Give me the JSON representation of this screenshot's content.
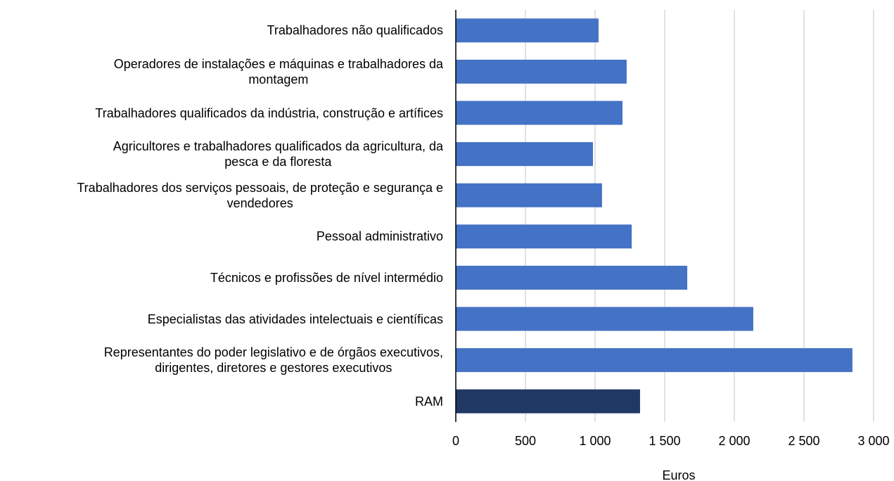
{
  "chart_data": {
    "type": "barh",
    "categories": [
      "Trabalhadores não qualificados",
      "Operadores de instalações e máquinas e trabalhadores da\nmontagem",
      "Trabalhadores qualificados da indústria, construção e artífices",
      "Agricultores e trabalhadores qualificados da agricultura, da\npesca e da floresta",
      "Trabalhadores dos serviços pessoais, de proteção e segurança e\nvendedores",
      "Pessoal administrativo",
      "Técnicos e profissões de nível intermédio",
      "Especialistas das atividades intelectuais e científicas",
      "Representantes do poder legislativo e de órgãos executivos,\ndirigentes, diretores e gestores executivos",
      "RAM"
    ],
    "values": [
      1025,
      1227,
      1197,
      985,
      1050,
      1263,
      1662,
      2136,
      2848,
      1323
    ],
    "colors": [
      "#4472c4",
      "#4472c4",
      "#4472c4",
      "#4472c4",
      "#4472c4",
      "#4472c4",
      "#4472c4",
      "#4472c4",
      "#4472c4",
      "#203864"
    ],
    "xlabel": "Euros",
    "xlim": [
      0,
      3000
    ],
    "xticks": [
      0,
      500,
      {
        "value": 1000,
        "label": "1 000"
      },
      {
        "value": 1500,
        "label": "1 500"
      },
      {
        "value": 2000,
        "label": "2 000"
      },
      {
        "value": 2500,
        "label": "2 500"
      },
      {
        "value": 3000,
        "label": "3 000"
      }
    ],
    "grid": true
  }
}
